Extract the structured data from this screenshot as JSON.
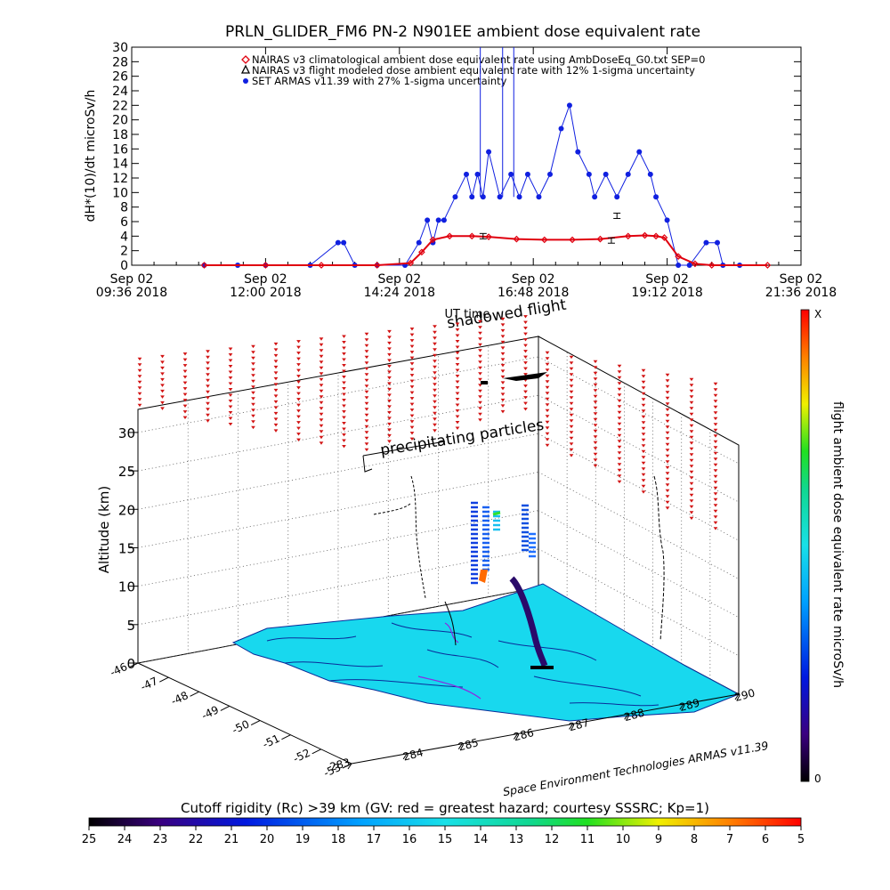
{
  "chart_data": [
    {
      "type": "scatter",
      "title": "PRLN_GLIDER_FM6 PN-2 N901EE ambient dose equivalent rate",
      "ylabel": "dH*(10)/dt microSv/h",
      "xlabel": "UT time",
      "ylim": [
        0,
        30
      ],
      "yticks": [
        0,
        2,
        4,
        6,
        8,
        10,
        12,
        14,
        16,
        18,
        20,
        22,
        24,
        26,
        28,
        30
      ],
      "xticks": [
        {
          "line1": "Sep 02",
          "line2": "09:36 2018"
        },
        {
          "line1": "Sep 02",
          "line2": "12:00 2018"
        },
        {
          "line1": "Sep 02",
          "line2": "14:24 2018"
        },
        {
          "line1": "Sep 02",
          "line2": "16:48 2018"
        },
        {
          "line1": "Sep 02",
          "line2": "19:12 2018"
        },
        {
          "line1": "Sep 02",
          "line2": "21:36 2018"
        }
      ],
      "xlim_hours": [
        9.6,
        21.6
      ],
      "legend": [
        {
          "name": "NAIRAS v3 climatological ambient dose equivalent rate using AmbDoseEq_G0.txt SEP=0",
          "color": "#e0000f",
          "marker": "diamond"
        },
        {
          "name": "NAIRAS v3 flight modeled dose ambient equivalent rate with 12% 1-sigma uncertainty",
          "color": "#000000",
          "marker": "triangle"
        },
        {
          "name": "SET ARMAS v11.39 with 27% 1-sigma uncertainty",
          "color": "#1020e0",
          "marker": "circle"
        }
      ],
      "legend_placement": "top-center",
      "overlay_text": "shadowed flight",
      "series": [
        {
          "name": "NAIRAS v3 climatological ambient dose equivalent rate using AmbDoseEq_G0.txt SEP=0",
          "x": [
            10.9,
            12.0,
            13.0,
            14.0,
            14.6,
            14.8,
            15.0,
            15.3,
            15.7,
            16.0,
            16.5,
            17.0,
            17.5,
            18.0,
            18.5,
            18.8,
            19.0,
            19.15,
            19.4,
            19.7,
            20.0,
            21.0
          ],
          "values": [
            0,
            0,
            0,
            0,
            0.3,
            1.8,
            3.5,
            4.0,
            4.0,
            3.9,
            3.6,
            3.5,
            3.5,
            3.6,
            4.0,
            4.1,
            4.0,
            3.8,
            1.2,
            0.2,
            0,
            0
          ]
        },
        {
          "name": "NAIRAS v3 flight modeled dose ambient equivalent rate with 12% 1-sigma uncertainty",
          "x": [
            15.9,
            18.2,
            18.3
          ],
          "values": [
            4.0,
            3.4,
            6.8
          ]
        },
        {
          "name": "SET ARMAS v11.39 with 27% 1-sigma uncertainty",
          "x": [
            10.9,
            11.5,
            12.0,
            12.8,
            13.3,
            13.4,
            13.6,
            14.0,
            14.5,
            14.75,
            14.9,
            15.0,
            15.1,
            15.2,
            15.4,
            15.6,
            15.7,
            15.8,
            15.9,
            16.0,
            16.2,
            16.4,
            16.55,
            16.7,
            16.9,
            17.1,
            17.3,
            17.45,
            17.6,
            17.8,
            17.9,
            18.1,
            18.3,
            18.5,
            18.7,
            18.9,
            19.0,
            19.2,
            19.4,
            19.6,
            19.9,
            20.1,
            20.2,
            20.5
          ],
          "values": [
            0,
            0,
            0,
            0,
            3.1,
            3.1,
            0,
            0,
            0,
            3.1,
            6.2,
            3.1,
            6.2,
            6.2,
            9.4,
            12.5,
            9.4,
            12.5,
            9.4,
            15.6,
            9.4,
            12.5,
            9.4,
            12.5,
            9.4,
            12.5,
            18.8,
            22.0,
            15.6,
            12.5,
            9.4,
            12.5,
            9.4,
            12.5,
            15.6,
            12.5,
            9.4,
            6.2,
            0,
            0,
            3.1,
            3.1,
            0,
            0
          ]
        }
      ]
    },
    {
      "type": "scatter",
      "title": "",
      "zlabel": "Altitude (km)",
      "zlim": [
        0,
        33
      ],
      "zticks": [
        0,
        5,
        10,
        15,
        20,
        25,
        30
      ],
      "y_ticks": [
        "-46",
        "-47",
        "-48",
        "-49",
        "-50",
        "-51",
        "-52",
        "-53"
      ],
      "x_ticks": [
        "283",
        "284",
        "285",
        "286",
        "287",
        "288",
        "289",
        "290"
      ],
      "annotations": [
        "precipitating particles"
      ],
      "credit": "Space Environment Technologies ARMAS v11.39",
      "colorbar_right": {
        "label": "flight ambient dose equivalent rate microSv/h",
        "top": "X",
        "bottom": "0"
      },
      "colorbar_bottom": {
        "label": "Cutoff rigidity (Rc) >39 km (GV: red = greatest hazard; courtesy SSSRC; Kp=1)",
        "ticks": [
          "25",
          "24",
          "23",
          "22",
          "21",
          "20",
          "19",
          "18",
          "17",
          "16",
          "15",
          "14",
          "13",
          "12",
          "11",
          "10",
          "9",
          "8",
          "7",
          "6",
          "5"
        ]
      },
      "colors": {
        "map_fill": "#18d8ee",
        "rigidity_marks": "#d21414",
        "track": "#000000"
      }
    }
  ]
}
